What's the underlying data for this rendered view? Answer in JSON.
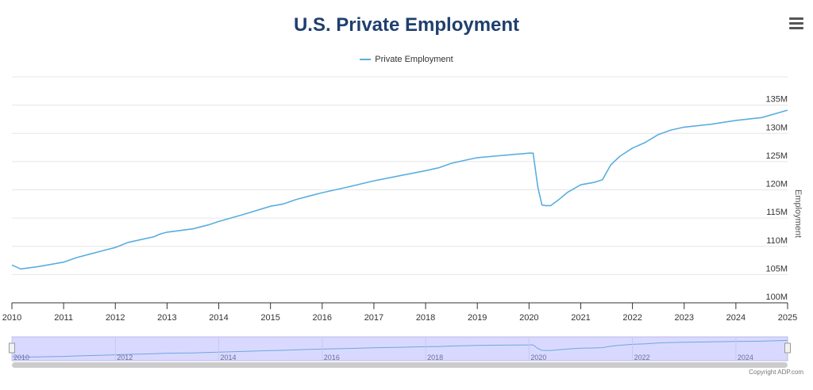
{
  "title": "U.S. Private Employment",
  "credits": "Copyright ADP.com",
  "colors": {
    "series": "#5aaee0",
    "title": "#1f3f6e",
    "navigator": "#ccccff"
  },
  "chart_data": {
    "type": "line",
    "title": "U.S. Private Employment",
    "ylabel": "Employment",
    "ylim": [
      100,
      140
    ],
    "y_ticks": [
      "100M",
      "105M",
      "110M",
      "115M",
      "120M",
      "125M",
      "130M",
      "135M"
    ],
    "y_tick_values": [
      100,
      105,
      110,
      115,
      120,
      125,
      130,
      135
    ],
    "x_ticks": [
      "2010",
      "2011",
      "2012",
      "2013",
      "2014",
      "2015",
      "2016",
      "2017",
      "2018",
      "2019",
      "2020",
      "2021",
      "2022",
      "2023",
      "2024",
      "2025"
    ],
    "navigator_ticks": [
      "2010",
      "2012",
      "2014",
      "2016",
      "2018",
      "2020",
      "2022",
      "2024"
    ],
    "xlim": [
      2010.0,
      2025.0
    ],
    "grid": true,
    "legend": "top-center",
    "y_axis_side": "right",
    "series": [
      {
        "name": "Private Employment",
        "x": [
          2010.0,
          2010.17,
          2010.5,
          2010.75,
          2011.0,
          2011.25,
          2011.5,
          2011.75,
          2012.0,
          2012.25,
          2012.5,
          2012.75,
          2012.87,
          2013.0,
          2013.5,
          2013.8,
          2014.0,
          2014.5,
          2015.0,
          2015.25,
          2015.5,
          2015.75,
          2016.0,
          2016.5,
          2017.0,
          2017.5,
          2018.0,
          2018.25,
          2018.5,
          2018.75,
          2019.0,
          2019.5,
          2019.75,
          2019.87,
          2020.0,
          2020.08,
          2020.17,
          2020.25,
          2020.33,
          2020.42,
          2020.58,
          2020.75,
          2021.0,
          2021.25,
          2021.42,
          2021.58,
          2021.75,
          2022.0,
          2022.25,
          2022.5,
          2022.75,
          2023.0,
          2023.5,
          2024.0,
          2024.5,
          2025.0
        ],
        "values": [
          106.7,
          106.0,
          106.4,
          106.8,
          107.2,
          108.0,
          108.6,
          109.2,
          109.8,
          110.7,
          111.2,
          111.7,
          112.2,
          112.5,
          113.1,
          113.8,
          114.4,
          115.7,
          117.1,
          117.5,
          118.3,
          118.9,
          119.5,
          120.5,
          121.6,
          122.5,
          123.4,
          123.9,
          124.7,
          125.2,
          125.7,
          126.1,
          126.3,
          126.4,
          126.5,
          126.5,
          120.5,
          117.3,
          117.2,
          117.2,
          118.3,
          119.6,
          120.9,
          121.3,
          121.8,
          124.4,
          125.9,
          127.4,
          128.4,
          129.8,
          130.6,
          131.1,
          131.6,
          132.3,
          132.8,
          134.1
        ]
      }
    ]
  }
}
